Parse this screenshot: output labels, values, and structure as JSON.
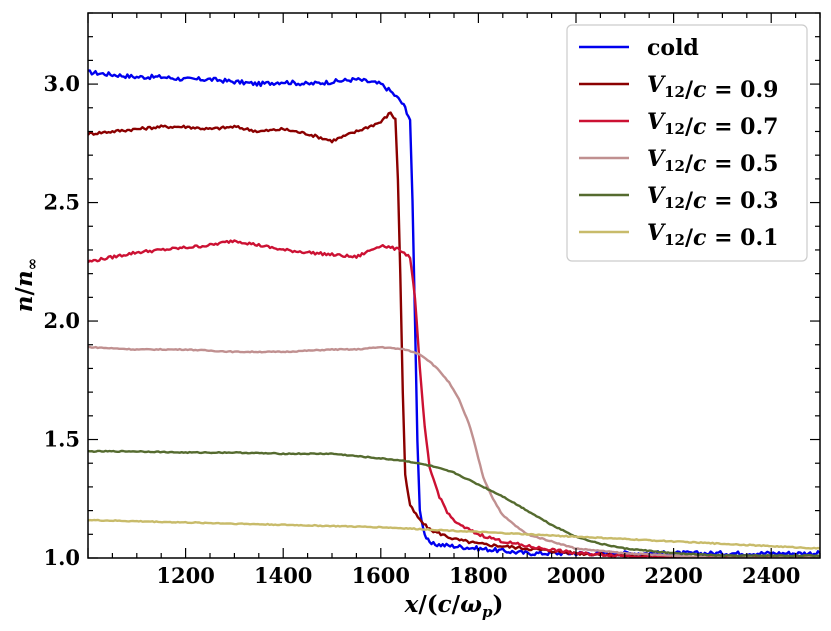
{
  "chart_data": {
    "type": "line",
    "title": "",
    "xlabel": "x/(c/ωp)",
    "ylabel": "n/n∞",
    "xlim": [
      1000,
      2500
    ],
    "ylim": [
      1.0,
      3.3
    ],
    "xticks": [
      1200,
      1400,
      1600,
      1800,
      2000,
      2200,
      2400
    ],
    "xtick_labels": [
      "1200",
      "1400",
      "1600",
      "1800",
      "2000",
      "2200",
      "2400"
    ],
    "yticks": [
      1.0,
      1.5,
      2.0,
      2.5,
      3.0
    ],
    "ytick_labels": [
      "1.0",
      "1.5",
      "2.0",
      "2.5",
      "3.0"
    ],
    "grid": false,
    "legend_position": "top-right",
    "series": [
      {
        "name": "cold",
        "color": "#0000ee",
        "points": [
          [
            1000,
            3.05
          ],
          [
            1050,
            3.04
          ],
          [
            1100,
            3.03
          ],
          [
            1150,
            3.03
          ],
          [
            1200,
            3.02
          ],
          [
            1250,
            3.02
          ],
          [
            1300,
            3.01
          ],
          [
            1350,
            3.0
          ],
          [
            1400,
            3.01
          ],
          [
            1450,
            3.0
          ],
          [
            1500,
            3.01
          ],
          [
            1550,
            3.02
          ],
          [
            1600,
            3.0
          ],
          [
            1620,
            2.97
          ],
          [
            1640,
            2.93
          ],
          [
            1650,
            2.9
          ],
          [
            1660,
            2.85
          ],
          [
            1665,
            2.5
          ],
          [
            1670,
            2.0
          ],
          [
            1675,
            1.5
          ],
          [
            1680,
            1.2
          ],
          [
            1690,
            1.1
          ],
          [
            1700,
            1.06
          ],
          [
            1750,
            1.05
          ],
          [
            1800,
            1.04
          ],
          [
            1850,
            1.03
          ],
          [
            1900,
            1.02
          ],
          [
            1950,
            1.02
          ],
          [
            2000,
            1.02
          ],
          [
            2100,
            1.02
          ],
          [
            2200,
            1.02
          ],
          [
            2300,
            1.02
          ],
          [
            2400,
            1.02
          ],
          [
            2500,
            1.02
          ]
        ],
        "label_parts": [
          {
            "text": "cold"
          }
        ]
      },
      {
        "name": "V12/c = 0.9",
        "color": "#8b0000",
        "points": [
          [
            1000,
            2.79
          ],
          [
            1050,
            2.8
          ],
          [
            1100,
            2.81
          ],
          [
            1150,
            2.82
          ],
          [
            1200,
            2.82
          ],
          [
            1250,
            2.81
          ],
          [
            1300,
            2.82
          ],
          [
            1350,
            2.8
          ],
          [
            1400,
            2.81
          ],
          [
            1450,
            2.79
          ],
          [
            1500,
            2.76
          ],
          [
            1550,
            2.8
          ],
          [
            1600,
            2.84
          ],
          [
            1620,
            2.88
          ],
          [
            1630,
            2.85
          ],
          [
            1635,
            2.6
          ],
          [
            1640,
            2.2
          ],
          [
            1645,
            1.7
          ],
          [
            1650,
            1.35
          ],
          [
            1660,
            1.22
          ],
          [
            1680,
            1.16
          ],
          [
            1700,
            1.12
          ],
          [
            1750,
            1.08
          ],
          [
            1800,
            1.06
          ],
          [
            1900,
            1.04
          ],
          [
            2000,
            1.02
          ],
          [
            2100,
            1.01
          ],
          [
            2200,
            1.0
          ],
          [
            2300,
            1.0
          ],
          [
            2400,
            1.0
          ],
          [
            2500,
            1.0
          ]
        ],
        "label_parts": [
          {
            "text": "V",
            "italic": true
          },
          {
            "text": "12",
            "sub": true
          },
          {
            "text": "/"
          },
          {
            "text": "c",
            "italic": true
          },
          {
            "text": " = 0.9"
          }
        ]
      },
      {
        "name": "V12/c = 0.7",
        "color": "#cc1133",
        "points": [
          [
            1000,
            2.25
          ],
          [
            1050,
            2.27
          ],
          [
            1100,
            2.29
          ],
          [
            1150,
            2.3
          ],
          [
            1200,
            2.31
          ],
          [
            1250,
            2.32
          ],
          [
            1300,
            2.34
          ],
          [
            1350,
            2.32
          ],
          [
            1400,
            2.3
          ],
          [
            1450,
            2.29
          ],
          [
            1500,
            2.28
          ],
          [
            1550,
            2.27
          ],
          [
            1600,
            2.32
          ],
          [
            1620,
            2.31
          ],
          [
            1640,
            2.3
          ],
          [
            1660,
            2.27
          ],
          [
            1670,
            2.1
          ],
          [
            1680,
            1.8
          ],
          [
            1690,
            1.55
          ],
          [
            1700,
            1.38
          ],
          [
            1720,
            1.26
          ],
          [
            1740,
            1.18
          ],
          [
            1760,
            1.14
          ],
          [
            1800,
            1.1
          ],
          [
            1850,
            1.07
          ],
          [
            1900,
            1.05
          ],
          [
            2000,
            1.02
          ],
          [
            2100,
            1.01
          ],
          [
            2200,
            1.0
          ],
          [
            2300,
            1.0
          ],
          [
            2400,
            1.0
          ],
          [
            2500,
            1.0
          ]
        ],
        "label_parts": [
          {
            "text": "V",
            "italic": true
          },
          {
            "text": "12",
            "sub": true
          },
          {
            "text": "/"
          },
          {
            "text": "c",
            "italic": true
          },
          {
            "text": " = 0.7"
          }
        ]
      },
      {
        "name": "V12/c = 0.5",
        "color": "#c09090",
        "points": [
          [
            1000,
            1.89
          ],
          [
            1100,
            1.88
          ],
          [
            1200,
            1.88
          ],
          [
            1300,
            1.87
          ],
          [
            1400,
            1.87
          ],
          [
            1500,
            1.88
          ],
          [
            1550,
            1.88
          ],
          [
            1600,
            1.89
          ],
          [
            1650,
            1.88
          ],
          [
            1680,
            1.86
          ],
          [
            1700,
            1.83
          ],
          [
            1720,
            1.79
          ],
          [
            1740,
            1.74
          ],
          [
            1760,
            1.67
          ],
          [
            1780,
            1.57
          ],
          [
            1790,
            1.5
          ],
          [
            1800,
            1.42
          ],
          [
            1810,
            1.34
          ],
          [
            1830,
            1.25
          ],
          [
            1850,
            1.18
          ],
          [
            1880,
            1.13
          ],
          [
            1900,
            1.1
          ],
          [
            1950,
            1.07
          ],
          [
            2000,
            1.04
          ],
          [
            2100,
            1.02
          ],
          [
            2200,
            1.01
          ],
          [
            2300,
            1.0
          ],
          [
            2400,
            1.0
          ],
          [
            2500,
            1.0
          ]
        ],
        "label_parts": [
          {
            "text": "V",
            "italic": true
          },
          {
            "text": "12",
            "sub": true
          },
          {
            "text": "/"
          },
          {
            "text": "c",
            "italic": true
          },
          {
            "text": " = 0.5"
          }
        ]
      },
      {
        "name": "V12/c = 0.3",
        "color": "#556b2f",
        "points": [
          [
            1000,
            1.45
          ],
          [
            1100,
            1.45
          ],
          [
            1200,
            1.445
          ],
          [
            1300,
            1.445
          ],
          [
            1400,
            1.44
          ],
          [
            1500,
            1.44
          ],
          [
            1550,
            1.43
          ],
          [
            1600,
            1.42
          ],
          [
            1650,
            1.41
          ],
          [
            1700,
            1.39
          ],
          [
            1750,
            1.36
          ],
          [
            1800,
            1.31
          ],
          [
            1850,
            1.26
          ],
          [
            1900,
            1.2
          ],
          [
            1950,
            1.14
          ],
          [
            2000,
            1.09
          ],
          [
            2050,
            1.06
          ],
          [
            2100,
            1.04
          ],
          [
            2150,
            1.03
          ],
          [
            2200,
            1.02
          ],
          [
            2300,
            1.01
          ],
          [
            2400,
            1.01
          ],
          [
            2500,
            1.01
          ]
        ],
        "label_parts": [
          {
            "text": "V",
            "italic": true
          },
          {
            "text": "12",
            "sub": true
          },
          {
            "text": "/"
          },
          {
            "text": "c",
            "italic": true
          },
          {
            "text": " = 0.3"
          }
        ]
      },
      {
        "name": "V12/c = 0.1",
        "color": "#c8bb6a",
        "points": [
          [
            1000,
            1.16
          ],
          [
            1100,
            1.155
          ],
          [
            1200,
            1.15
          ],
          [
            1300,
            1.145
          ],
          [
            1400,
            1.14
          ],
          [
            1500,
            1.135
          ],
          [
            1600,
            1.13
          ],
          [
            1700,
            1.12
          ],
          [
            1800,
            1.11
          ],
          [
            1900,
            1.1
          ],
          [
            2000,
            1.09
          ],
          [
            2100,
            1.08
          ],
          [
            2200,
            1.07
          ],
          [
            2300,
            1.06
          ],
          [
            2400,
            1.05
          ],
          [
            2500,
            1.04
          ]
        ],
        "label_parts": [
          {
            "text": "V",
            "italic": true
          },
          {
            "text": "12",
            "sub": true
          },
          {
            "text": "/"
          },
          {
            "text": "c",
            "italic": true
          },
          {
            "text": " = 0.1"
          }
        ]
      }
    ]
  }
}
